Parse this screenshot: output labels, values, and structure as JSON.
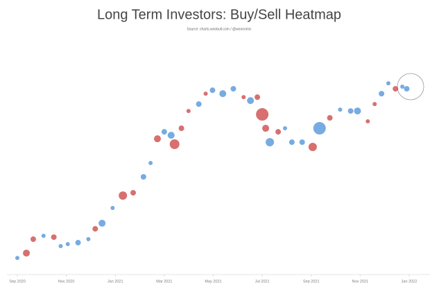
{
  "chart_data": {
    "type": "scatter",
    "title": "Long Term Investors: Buy/Sell Heatmap",
    "subtitle": "Source: charts.woobull.com / @woonomic",
    "xlim": [
      0,
      16
    ],
    "xticks": [
      {
        "value": 0,
        "label": "Sep 2020"
      },
      {
        "value": 2,
        "label": "Nov 2020"
      },
      {
        "value": 4,
        "label": "Jan 2021"
      },
      {
        "value": 6,
        "label": "Mar 2021"
      },
      {
        "value": 8,
        "label": "May 2021"
      },
      {
        "value": 10,
        "label": "Jul 2021"
      },
      {
        "value": 12,
        "label": "Sep 2021"
      },
      {
        "value": 14,
        "label": "Nov 2021"
      },
      {
        "value": 16,
        "label": "Jan 2022"
      }
    ],
    "ylim": [
      9000,
      100000
    ],
    "log_y": true,
    "x": [
      0,
      0.37,
      0.65,
      1.07,
      1.49,
      1.77,
      2.06,
      2.48,
      2.9,
      3.18,
      3.46,
      3.89,
      4.31,
      4.73,
      5.15,
      5.44,
      5.72,
      6.0,
      6.28,
      6.42,
      6.7,
      6.99,
      7.41,
      7.69,
      7.97,
      8.39,
      8.82,
      9.24,
      9.52,
      9.8,
      10.0,
      10.14,
      10.31,
      10.65,
      10.93,
      11.21,
      11.63,
      12.06,
      12.34,
      12.76,
      13.18,
      13.61,
      13.89,
      14.31,
      14.59,
      14.87,
      15.15,
      15.44,
      15.72,
      15.9
    ],
    "values": [
      9900,
      10430,
      12100,
      12550,
      12370,
      11240,
      11480,
      11660,
      12100,
      13520,
      14350,
      16890,
      19280,
      19870,
      23560,
      27330,
      35400,
      38120,
      36740,
      33400,
      39600,
      47640,
      51290,
      57320,
      59470,
      57320,
      60390,
      55220,
      53220,
      55220,
      45920,
      39600,
      34130,
      38120,
      39600,
      34130,
      34130,
      32420,
      39600,
      44250,
      48330,
      47640,
      47640,
      42650,
      51290,
      57320,
      64060,
      60390,
      61780,
      60390
    ],
    "sizes": [
      3,
      5,
      4,
      3,
      4,
      3,
      3,
      4,
      3,
      4,
      5,
      3,
      6,
      4,
      4,
      3,
      5,
      4,
      5,
      7,
      4,
      3,
      4,
      3,
      4,
      5,
      4,
      3,
      5,
      4,
      9,
      5,
      6,
      4,
      3,
      4,
      4,
      6,
      9,
      4,
      3,
      4,
      5,
      3,
      3,
      4,
      3,
      4,
      3,
      4
    ],
    "colors": [
      "#4a8fd8",
      "#c9403f",
      "#c9403f",
      "#4a8fd8",
      "#c9403f",
      "#4a8fd8",
      "#4a8fd8",
      "#4a8fd8",
      "#4a8fd8",
      "#c9403f",
      "#4a8fd8",
      "#4a8fd8",
      "#c9403f",
      "#c9403f",
      "#4a8fd8",
      "#4a8fd8",
      "#c9403f",
      "#4a8fd8",
      "#4a8fd8",
      "#c9403f",
      "#c9403f",
      "#c9403f",
      "#4a8fd8",
      "#c9403f",
      "#4a8fd8",
      "#4a8fd8",
      "#4a8fd8",
      "#c9403f",
      "#4a8fd8",
      "#c9403f",
      "#c9403f",
      "#c9403f",
      "#4a8fd8",
      "#c9403f",
      "#4a8fd8",
      "#4a8fd8",
      "#4a8fd8",
      "#c9403f",
      "#4a8fd8",
      "#c9403f",
      "#4a8fd8",
      "#4a8fd8",
      "#4a8fd8",
      "#c9403f",
      "#c9403f",
      "#4a8fd8",
      "#4a8fd8",
      "#c9403f",
      "#4a8fd8",
      "#4a8fd8"
    ]
  }
}
